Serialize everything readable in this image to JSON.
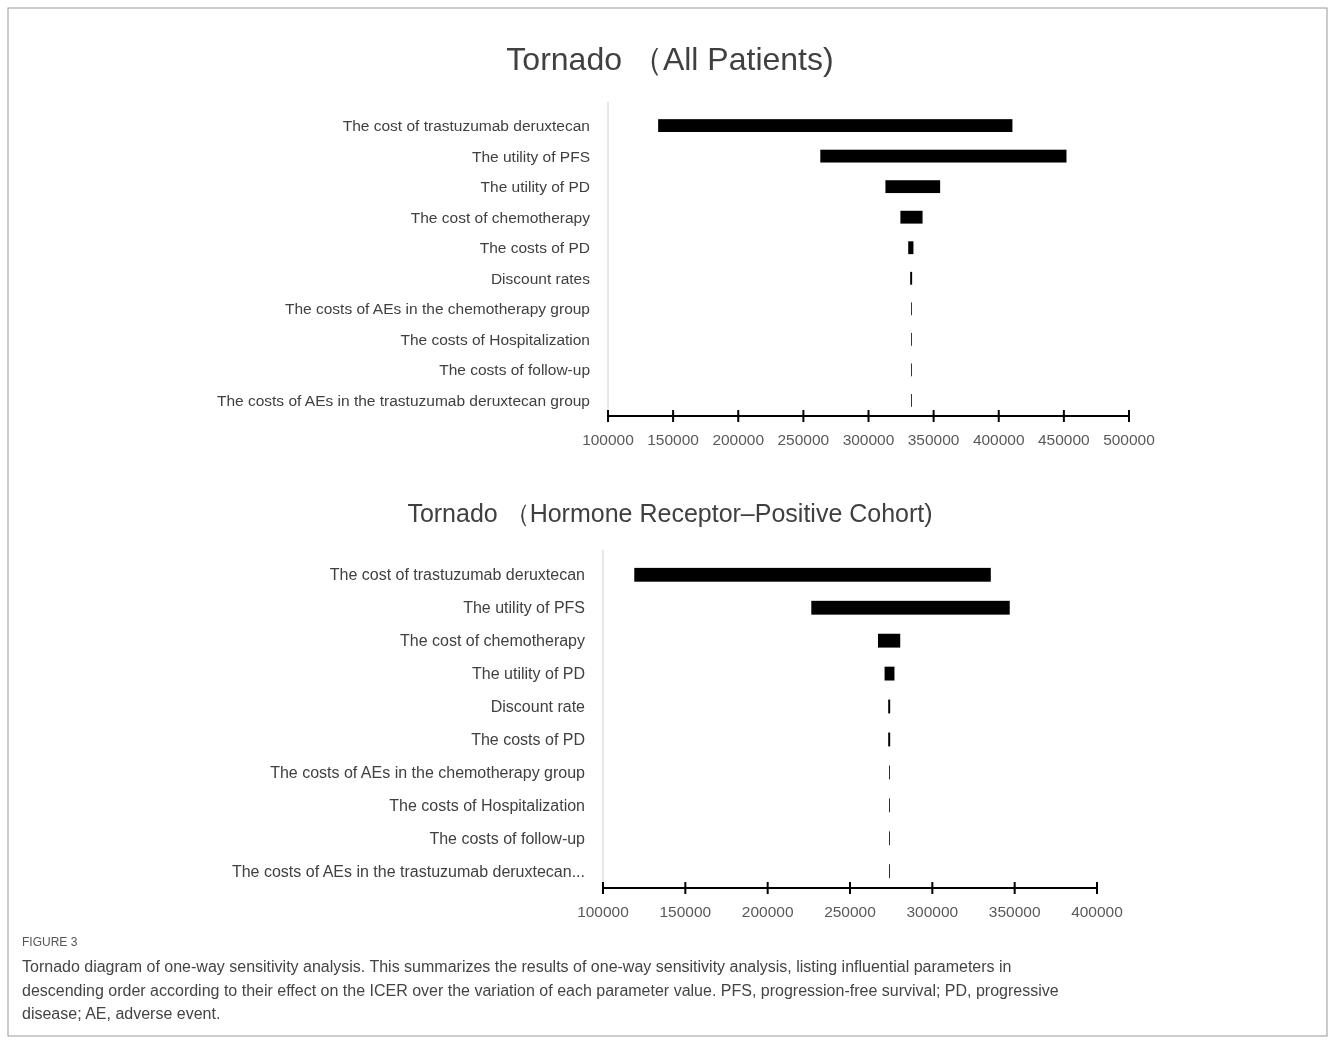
{
  "chart_data": [
    {
      "type": "bar",
      "orientation": "horizontal",
      "title": "Tornado （All Patients)",
      "color": "#000000",
      "categories": [
        "The cost of trastuzumab deruxtecan",
        "The utility of PFS",
        "The utility of PD",
        "The cost of chemotherapy",
        "The costs of PD",
        "Discount rates ",
        "The costs of AEs in the chemotherapy group",
        "The costs of Hospitalization",
        "The costs of follow-up",
        "The costs of AEs in the trastuzumab deruxtecan group"
      ],
      "base": [
        138500,
        263000,
        313000,
        324500,
        330500,
        332000,
        332700,
        332700,
        332700,
        332700
      ],
      "values": [
        272000,
        189000,
        42000,
        17000,
        4000,
        1500,
        600,
        600,
        600,
        600
      ],
      "xlim": [
        100000,
        500000
      ],
      "xticks": [
        100000,
        150000,
        200000,
        250000,
        300000,
        350000,
        400000,
        450000,
        500000
      ]
    },
    {
      "type": "bar",
      "orientation": "horizontal",
      "title": "Tornado （Hormone Receptor–Positive Cohort)",
      "color": "#000000",
      "categories": [
        "The cost of trastuzumab deruxtecan",
        "The utility of PFS",
        "The cost of chemotherapy",
        "The utility of PD",
        "Discount rate",
        "The costs of PD",
        "The costs of AEs in the chemotherapy group",
        "The costs of Hospitalization",
        "The costs of follow-up",
        "The costs of AEs in the trastuzumab deruxtecan..."
      ],
      "base": [
        119000,
        226500,
        267000,
        271000,
        273200,
        273200,
        273700,
        273700,
        273700,
        273700
      ],
      "values": [
        216500,
        120500,
        13500,
        6000,
        1200,
        1200,
        500,
        500,
        500,
        500
      ],
      "xlim": [
        100000,
        400000
      ],
      "xticks": [
        100000,
        150000,
        200000,
        250000,
        300000,
        350000,
        400000
      ],
      "annotations": [
        "FIGURE 3",
        "Tornado diagram of one-way sensitivity analysis. This summarizes the results of one-way sensitivity analysis, listing influential parameters in descending order according to their effect on the ICER over the variation of each parameter value. PFS, progression-free survival; PD, progressive disease; AE, adverse event."
      ]
    }
  ]
}
